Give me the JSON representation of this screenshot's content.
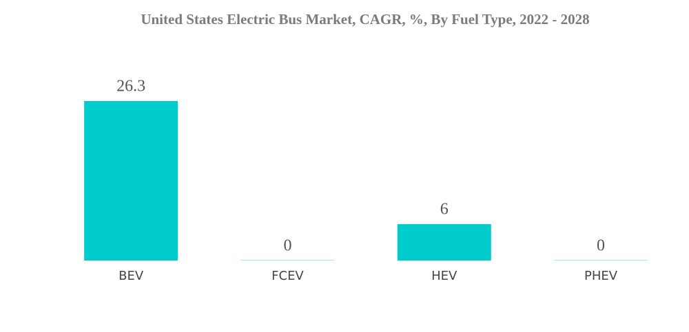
{
  "chart_data": {
    "type": "bar",
    "title": "United States Electric Bus Market, CAGR, %, By Fuel Type, 2022 - 2028",
    "categories": [
      "BEV",
      "FCEV",
      "HEV",
      "PHEV"
    ],
    "values": [
      26.3,
      0,
      6,
      0
    ],
    "color": "#00cccc"
  }
}
